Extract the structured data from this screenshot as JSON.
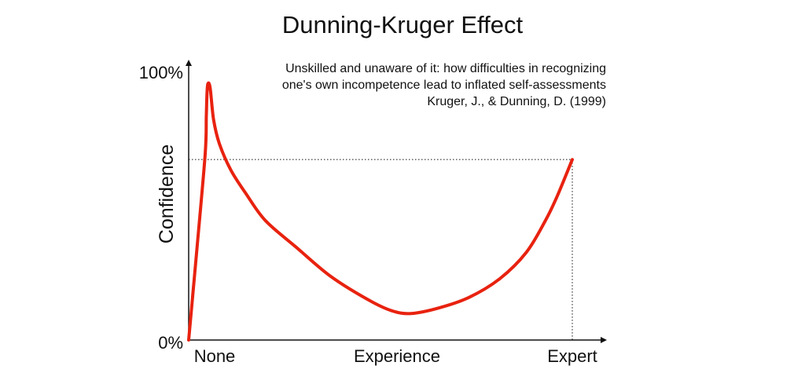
{
  "colors": {
    "curve": "#e8220f",
    "axis": "#111111",
    "reference": "#111111",
    "background": "#ffffff"
  },
  "chart_data": {
    "type": "line",
    "title": "Dunning-Kruger Effect",
    "ylabel": "Confidence",
    "xlabel": "",
    "x_tick_labels": [
      "None",
      "Experience",
      "Expert"
    ],
    "y_tick_labels": [
      "0%",
      "100%"
    ],
    "xlim": [
      0,
      100
    ],
    "ylim": [
      0,
      100
    ],
    "annotation": {
      "lines": [
        "Unskilled and unaware of it: how difficulties in recognizing",
        "one's own incompetence lead to inflated self-assessments",
        "Kruger, J., & Dunning, D. (1999)"
      ]
    },
    "series": [
      {
        "points": [
          [
            0,
            0
          ],
          [
            2.2,
            35
          ],
          [
            4.3,
            70
          ],
          [
            4.6,
            84
          ],
          [
            4.75,
            92
          ],
          [
            5.0,
            96.5
          ],
          [
            5.6,
            95
          ],
          [
            6.5,
            83
          ],
          [
            8,
            74
          ],
          [
            11,
            64
          ],
          [
            15,
            55
          ],
          [
            20,
            45
          ],
          [
            28,
            35
          ],
          [
            37,
            24
          ],
          [
            47,
            15
          ],
          [
            53,
            11
          ],
          [
            58,
            10
          ],
          [
            65,
            12
          ],
          [
            73,
            16
          ],
          [
            81,
            23
          ],
          [
            88,
            33
          ],
          [
            93,
            45
          ],
          [
            96,
            54
          ],
          [
            100,
            68
          ]
        ]
      }
    ],
    "reference_point": {
      "x": 100,
      "y": 68
    },
    "grid": false,
    "legend": "none"
  }
}
